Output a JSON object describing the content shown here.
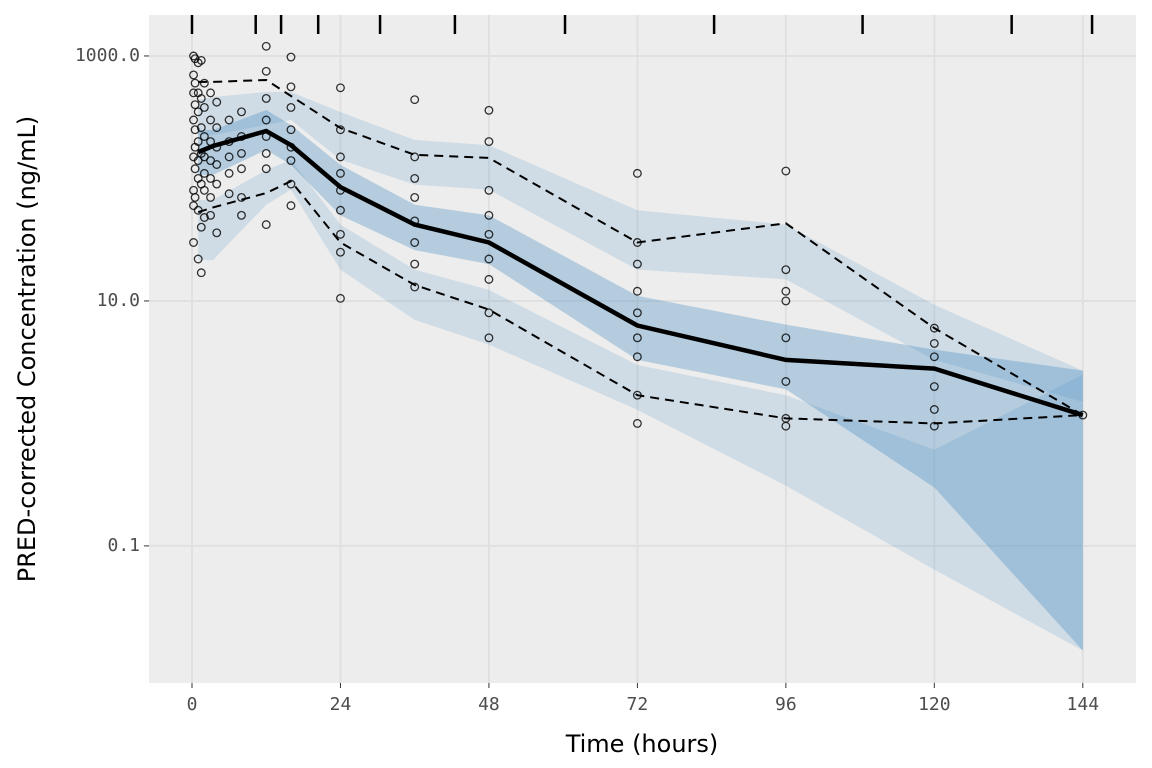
{
  "chart_data": {
    "type": "line",
    "xlabel": "Time (hours)",
    "ylabel": "PRED-corrected Concentration (ng/mL)",
    "xlim": [
      -6.95,
      152.6
    ],
    "ylim": [
      0.0076,
      2160
    ],
    "xticks": [
      0,
      24,
      48,
      72,
      96,
      120,
      144
    ],
    "yticks": [
      {
        "value": 1000,
        "label": "1000.0"
      },
      {
        "value": 10,
        "label": "10.0"
      },
      0.1
    ],
    "log_y": true,
    "grid": true,
    "x": [
      1,
      3.4,
      12,
      16,
      24,
      36,
      48,
      72,
      96,
      120,
      144
    ],
    "bands": [
      {
        "color": "#3182bd",
        "opacity": 0.15,
        "upper": [
          437,
          462,
          508,
          508,
          349,
          206,
          187,
          55,
          42,
          9.3,
          2.7
        ],
        "lower": [
          226,
          226,
          273,
          300,
          142,
          89,
          81,
          18,
          15,
          3.3,
          1.5
        ]
      },
      {
        "color": "#3182bd",
        "opacity": 0.3,
        "upper": [
          249,
          249,
          362,
          273,
          129,
          61,
          50,
          11,
          6.4,
          4.0,
          2.7
        ],
        "lower": [
          107,
          107,
          171,
          129,
          50,
          26,
          20,
          3.3,
          1.9,
          0.3,
          0.014
        ]
      },
      {
        "color": "#3182bd",
        "opacity": 0.15,
        "upper": [
          67,
          67,
          117,
          142,
          42,
          18,
          12.3,
          3.0,
          1.7,
          0.61,
          2.5
        ],
        "lower": [
          21.6,
          21.6,
          61,
          81,
          18,
          7,
          4.4,
          1.29,
          0.31,
          0.064,
          0.014
        ]
      }
    ],
    "series": [
      {
        "color": "#000000",
        "dashed": true,
        "values": [
          614,
          614,
          637,
          471,
          258,
          156,
          147,
          30,
          43,
          6.0,
          1.17
        ]
      },
      {
        "color": "#000000",
        "dashed": false,
        "values": [
          164,
          184,
          244,
          187,
          85,
          42,
          30,
          6.3,
          3.3,
          2.8,
          1.17
        ]
      },
      {
        "color": "#000000",
        "dashed": true,
        "values": [
          53,
          58,
          76,
          95,
          30,
          13.5,
          8.5,
          1.7,
          1.1,
          1.0,
          1.17
        ]
      }
    ],
    "points": {
      "color": "#000000",
      "x": [
        0.25,
        0.25,
        0.25,
        0.25,
        0.25,
        0.25,
        0.25,
        0.25,
        0.5,
        0.5,
        0.5,
        0.5,
        0.5,
        0.5,
        0.5,
        1,
        1,
        1,
        1,
        1,
        1,
        1,
        1,
        1.5,
        1.5,
        1.5,
        1.5,
        1.5,
        1.5,
        1.5,
        2,
        2,
        2,
        2,
        2,
        2,
        2,
        3,
        3,
        3,
        3,
        3,
        3,
        3,
        4,
        4,
        4,
        4,
        4,
        4,
        6,
        6,
        6,
        6,
        6,
        8,
        8,
        8,
        8,
        8,
        8,
        12,
        12,
        12,
        12,
        12,
        12,
        12,
        12,
        16,
        16,
        16,
        16,
        16,
        16,
        16,
        16,
        24,
        24,
        24,
        24,
        24,
        24,
        24,
        24,
        24,
        36,
        36,
        36,
        36,
        36,
        36,
        36,
        36,
        48,
        48,
        48,
        48,
        48,
        48,
        48,
        48,
        48,
        72,
        72,
        72,
        72,
        72,
        72,
        72,
        72,
        72,
        96,
        96,
        96,
        96,
        96,
        96,
        96,
        96,
        120,
        120,
        120,
        120,
        120,
        120,
        144
      ],
      "y": [
        1000,
        700,
        500,
        300,
        150,
        80,
        60,
        30,
        950,
        600,
        400,
        250,
        180,
        120,
        70,
        880,
        500,
        350,
        200,
        140,
        100,
        55,
        22,
        920,
        450,
        260,
        160,
        90,
        40,
        17,
        600,
        380,
        220,
        150,
        110,
        80,
        48,
        500,
        300,
        200,
        140,
        100,
        70,
        50,
        420,
        260,
        180,
        130,
        90,
        36,
        300,
        200,
        150,
        110,
        75,
        350,
        220,
        160,
        120,
        70,
        50,
        1200,
        750,
        450,
        300,
        220,
        160,
        120,
        42,
        980,
        560,
        380,
        250,
        180,
        140,
        90,
        60,
        550,
        250,
        150,
        110,
        80,
        55,
        35,
        25,
        10.5,
        440,
        150,
        100,
        70,
        45,
        30,
        20,
        13,
        360,
        200,
        80,
        50,
        35,
        22,
        15,
        8,
        5,
        110,
        30,
        20,
        12,
        8,
        5,
        3.5,
        1.7,
        1,
        115,
        18,
        12,
        10,
        5,
        2.2,
        1.1,
        0.95,
        6,
        4.5,
        3.5,
        2,
        1.3,
        0.95,
        1.17
      ]
    },
    "bin_edges": [
      0,
      10.3,
      14.4,
      20.4,
      30.4,
      42.5,
      60.3,
      84.4,
      108.4,
      132.5,
      145.5
    ]
  }
}
